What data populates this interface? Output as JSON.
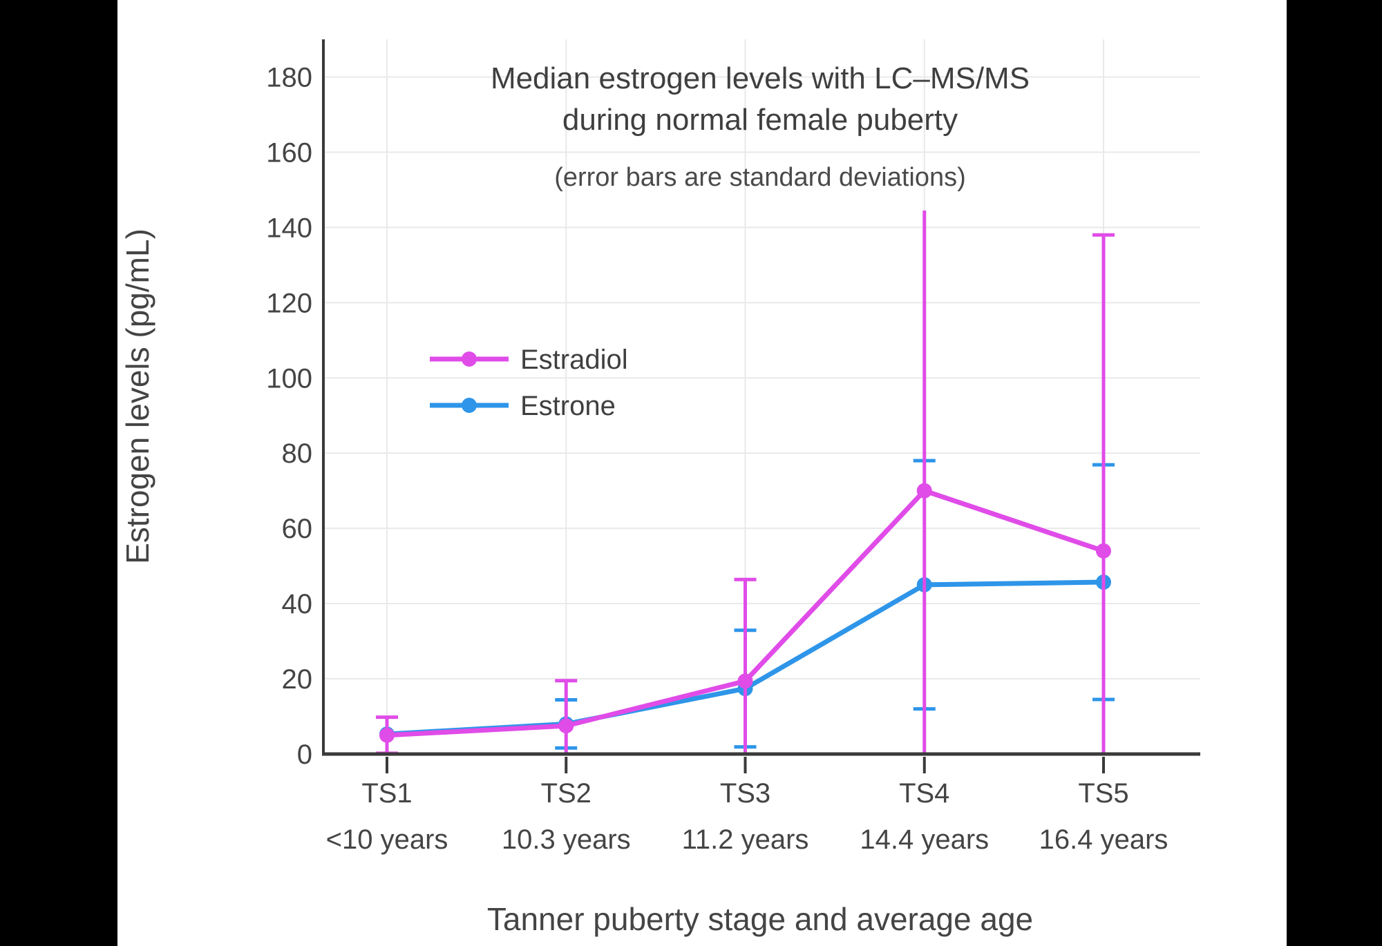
{
  "window": {
    "background": "#000000",
    "canvas_background": "#FFFFFF"
  },
  "chart_data": {
    "type": "line",
    "title": "Median estrogen levels with LC–MS/MS",
    "title_line2": "during normal female puberty",
    "subtitle": "(error bars are standard deviations)",
    "xlabel": "Tanner puberty stage and average age",
    "ylabel": "Estrogen levels (pg/mL)",
    "categories": [
      "TS1",
      "TS2",
      "TS3",
      "TS4",
      "TS5"
    ],
    "category_sublabels": [
      "<10 years",
      "10.3 years",
      "11.2 years",
      "14.4 years",
      "16.4 years"
    ],
    "ylim": [
      0,
      190
    ],
    "yticks": [
      0,
      20,
      40,
      60,
      80,
      100,
      120,
      140,
      160,
      180
    ],
    "grid": true,
    "error_bars": "standard deviations",
    "legend": {
      "position": "inside-upper-left",
      "entries": [
        "Estradiol",
        "Estrone"
      ]
    },
    "series": [
      {
        "name": "Estrone",
        "color": "#2E95E9",
        "values": [
          5.3,
          8,
          17.4,
          45,
          45.7
        ],
        "sd": [
          null,
          6.4,
          15.5,
          33,
          31.2
        ],
        "cap_top": [
          false,
          true,
          true,
          true,
          true
        ],
        "cap_bottom": [
          false,
          true,
          true,
          true,
          true
        ]
      },
      {
        "name": "Estradiol",
        "color": "#E04CE8",
        "values": [
          5,
          7.5,
          19.4,
          70,
          54
        ],
        "sd": [
          4.8,
          12,
          27,
          74.5,
          84
        ],
        "cap_top": [
          true,
          true,
          true,
          false,
          true
        ],
        "cap_bottom": [
          true,
          false,
          false,
          false,
          false
        ]
      }
    ],
    "axis_color": "#3A3A3A",
    "grid_color": "#E9E9E9",
    "text_color": "#444444",
    "title_color": "#3F3F3F"
  }
}
